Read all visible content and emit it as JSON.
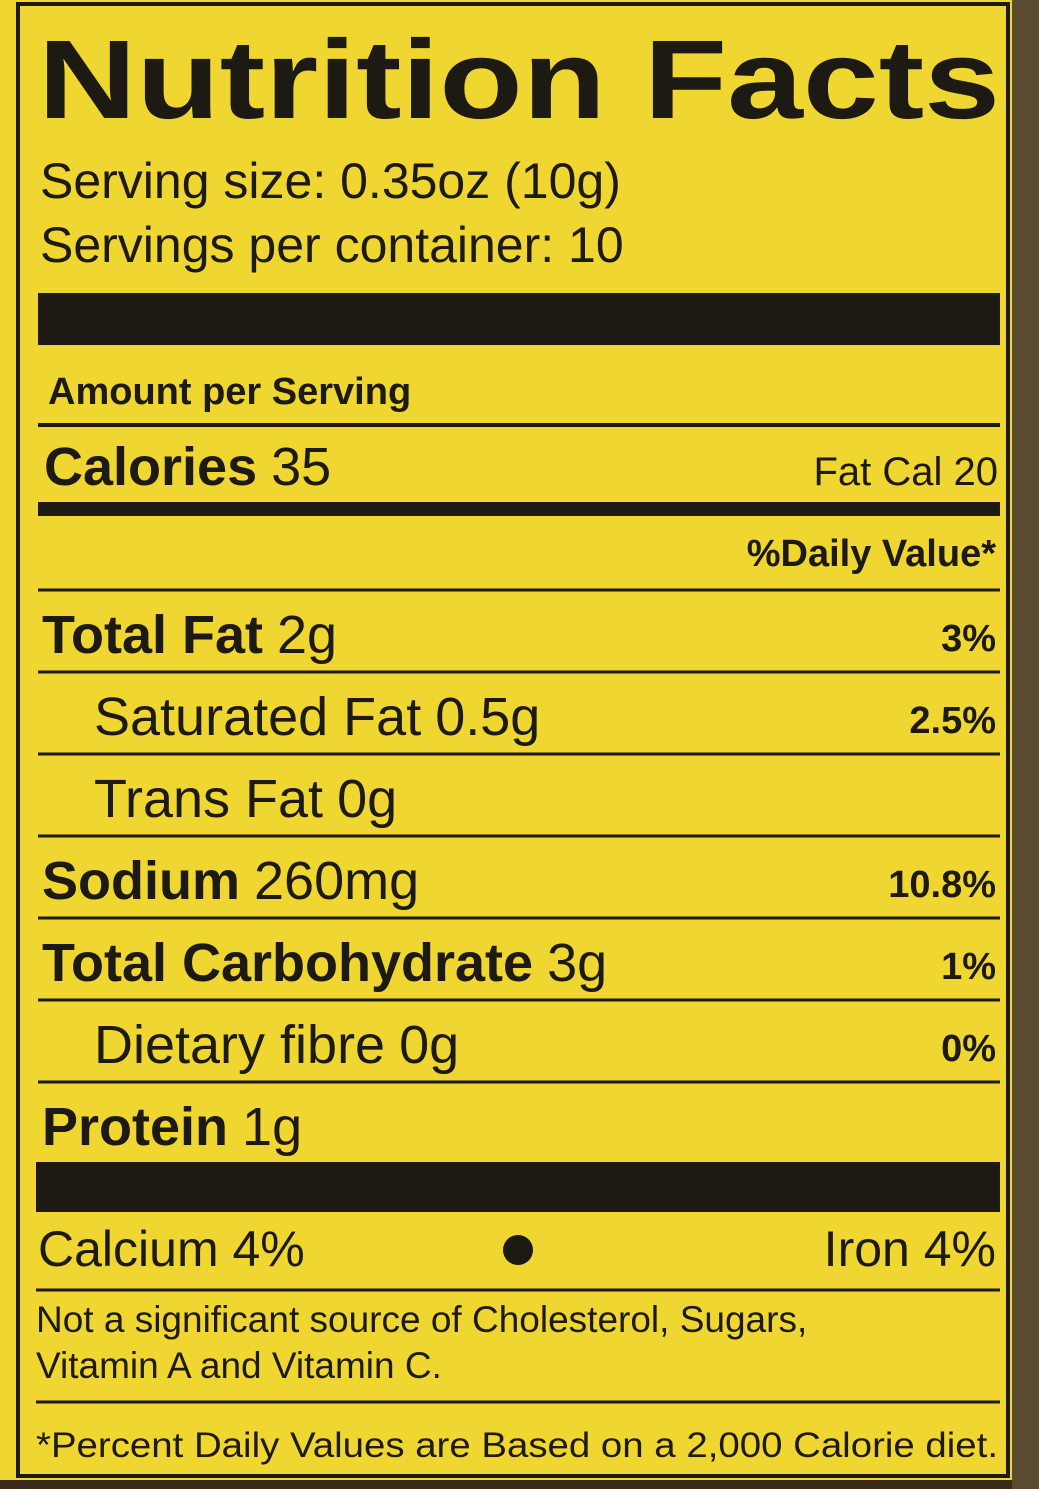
{
  "header": {
    "title": "Nutrition Facts",
    "serving_size": "Serving size: 0.35oz (10g)",
    "servings_per_container": "Servings per container: 10"
  },
  "amount_per_serving": "Amount per Serving",
  "calories": {
    "label": "Calories",
    "value": "35",
    "fat_calories": "Fat Cal 20"
  },
  "daily_value_header": "%Daily Value*",
  "nutrients": [
    {
      "name": "Total Fat",
      "amount": "2g",
      "daily_value": "3%",
      "sub": false
    },
    {
      "name": "Saturated Fat",
      "amount": "0.5g",
      "daily_value": "2.5%",
      "sub": true
    },
    {
      "name": "Trans Fat",
      "amount": "0g",
      "daily_value": null,
      "sub": true
    },
    {
      "name": "Sodium",
      "amount": "260mg",
      "daily_value": "10.8%",
      "sub": false
    },
    {
      "name": "Total Carbohydrate",
      "amount": "3g",
      "daily_value": "1%",
      "sub": false
    },
    {
      "name": "Dietary fibre",
      "amount": "0g",
      "daily_value": "0%",
      "sub": true
    },
    {
      "name": "Protein",
      "amount": "1g",
      "daily_value": null,
      "sub": false
    }
  ],
  "minerals": {
    "calcium": "Calcium 4%",
    "iron": "Iron 4%"
  },
  "footnotes": {
    "not_significant": [
      "Not a significant source of Cholesterol, Sugars,",
      "Vitamin A and Vitamin C."
    ],
    "percent_daily": "*Percent Daily Values are Based on a 2,000 Calorie diet."
  }
}
